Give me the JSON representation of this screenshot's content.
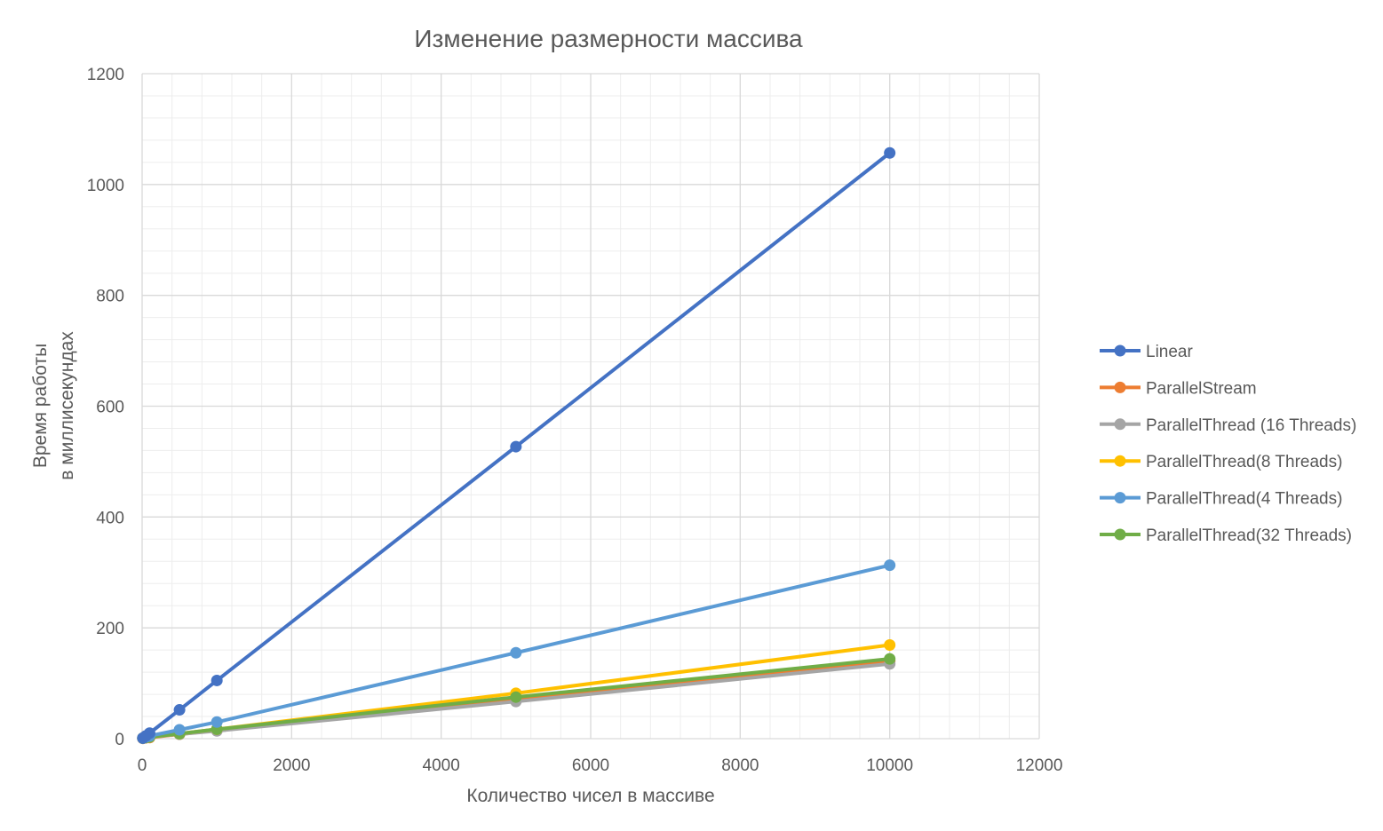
{
  "chart_data": {
    "type": "scatter",
    "title": "Изменение размерности массива",
    "xlabel": "Количество чисел в массиве",
    "ylabel_lines": [
      "Время работы",
      "в миллисекундах"
    ],
    "xlim": [
      0,
      12000
    ],
    "ylim": [
      0,
      1200
    ],
    "x_ticks": [
      0,
      2000,
      4000,
      6000,
      8000,
      10000,
      12000
    ],
    "y_ticks": [
      0,
      200,
      400,
      600,
      800,
      1000,
      1200
    ],
    "grid": true,
    "legend_position": "right",
    "series": [
      {
        "name": "Linear",
        "color": "#4472C4",
        "x": [
          10,
          50,
          100,
          500,
          1000,
          5000,
          10000
        ],
        "y": [
          1,
          5,
          10,
          52,
          105,
          527,
          1057
        ]
      },
      {
        "name": "ParallelStream",
        "color": "#ED7D31",
        "x": [
          10,
          50,
          100,
          500,
          1000,
          5000,
          10000
        ],
        "y": [
          0.5,
          1.5,
          2,
          8,
          15,
          70,
          140
        ]
      },
      {
        "name": "ParallelThread (16 Threads)",
        "color": "#A5A5A5",
        "x": [
          10,
          50,
          100,
          500,
          1000,
          5000,
          10000
        ],
        "y": [
          1,
          2,
          3,
          8,
          14,
          67,
          135
        ]
      },
      {
        "name": "ParallelThread(8 Threads)",
        "color": "#FFC000",
        "x": [
          10,
          50,
          100,
          500,
          1000,
          5000,
          10000
        ],
        "y": [
          1,
          2,
          3,
          9,
          17,
          82,
          169
        ]
      },
      {
        "name": "ParallelThread(4 Threads)",
        "color": "#5B9BD5",
        "x": [
          10,
          50,
          100,
          500,
          1000,
          5000,
          10000
        ],
        "y": [
          1,
          3,
          5,
          16,
          30,
          155,
          313
        ]
      },
      {
        "name": "ParallelThread(32 Threads)",
        "color": "#70AD47",
        "x": [
          10,
          50,
          100,
          500,
          1000,
          5000,
          10000
        ],
        "y": [
          1,
          2,
          3,
          9,
          17,
          75,
          144
        ]
      }
    ]
  }
}
